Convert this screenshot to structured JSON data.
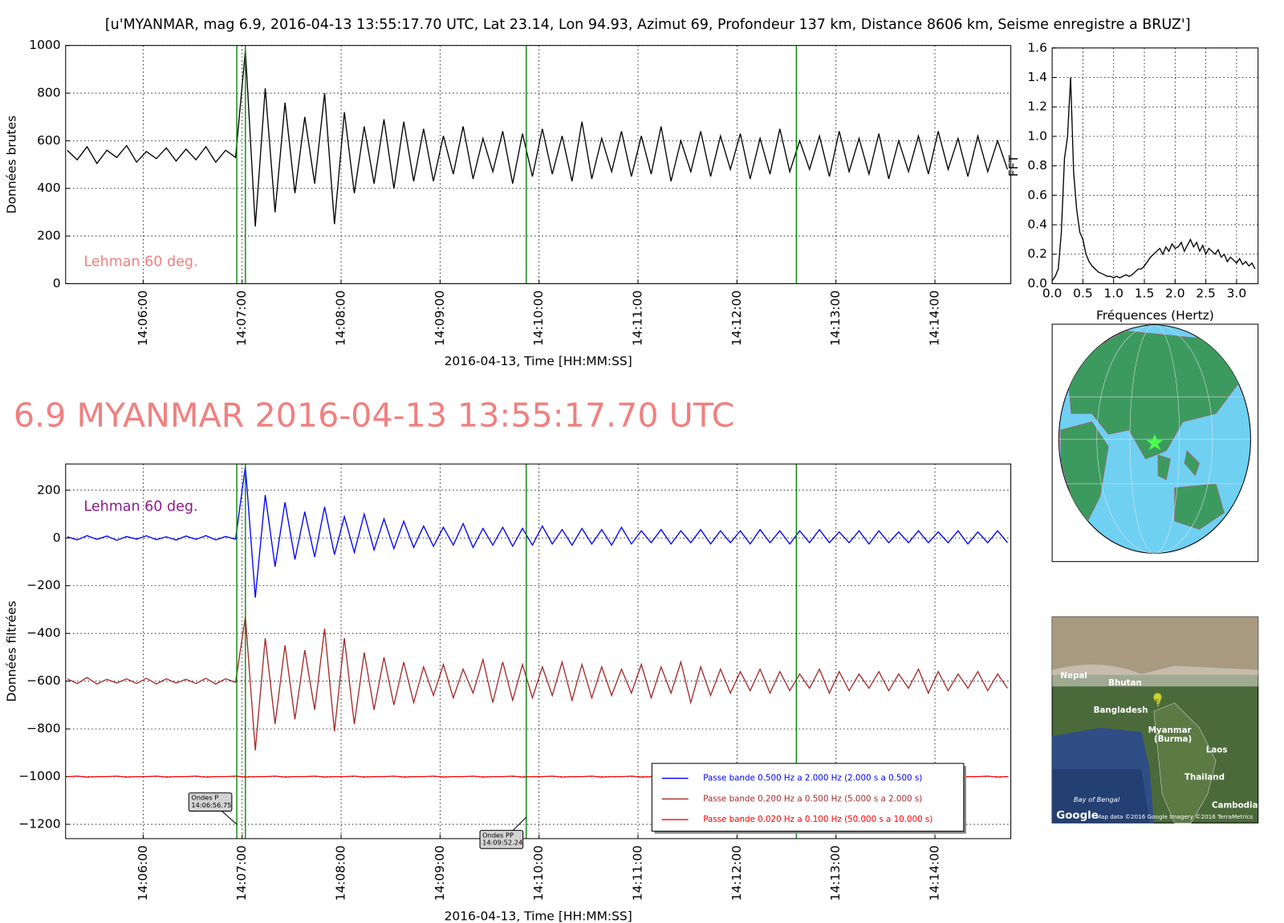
{
  "title": "[u'MYANMAR, mag 6.9, 2016-04-13 13:55:17.70 UTC, Lat 23.14, Lon 94.93, Azimut  69, Profondeur 137 km, Distance  8606 km, Seisme enregistre a BRUZ']",
  "headline": "6.9 MYANMAR 2016-04-13 13:55:17.70 UTC",
  "chart_data": [
    {
      "type": "line",
      "ylabel": "Données brutes",
      "xlabel": "2016-04-13, Time [HH:MM:SS]",
      "annotation": "Lehman 60 deg.",
      "annotation_color": "#f08080",
      "color": "#000000",
      "grid": true,
      "xlim": [
        "14:05:13",
        "14:14:46"
      ],
      "xticks": [
        "14:06:00",
        "14:07:00",
        "14:08:00",
        "14:09:00",
        "14:10:00",
        "14:11:00",
        "14:12:00",
        "14:13:00",
        "14:14:00"
      ],
      "ylim": [
        0,
        1000
      ],
      "yticks": [
        0,
        200,
        400,
        600,
        800,
        1000
      ],
      "vlines": [
        "14:06:56.75",
        "14:07:02",
        "14:09:52.24",
        "14:12:36"
      ],
      "vline_color": "#008000",
      "x": [
        "14:05:14",
        "14:05:20",
        "14:05:26",
        "14:05:32",
        "14:05:38",
        "14:05:44",
        "14:05:50",
        "14:05:56",
        "14:06:02",
        "14:06:08",
        "14:06:14",
        "14:06:20",
        "14:06:26",
        "14:06:32",
        "14:06:38",
        "14:06:44",
        "14:06:50",
        "14:06:56",
        "14:07:02",
        "14:07:08",
        "14:07:14",
        "14:07:20",
        "14:07:26",
        "14:07:32",
        "14:07:38",
        "14:07:44",
        "14:07:50",
        "14:07:56",
        "14:08:02",
        "14:08:08",
        "14:08:14",
        "14:08:20",
        "14:08:26",
        "14:08:32",
        "14:08:38",
        "14:08:44",
        "14:08:50",
        "14:08:56",
        "14:09:02",
        "14:09:08",
        "14:09:14",
        "14:09:20",
        "14:09:26",
        "14:09:32",
        "14:09:38",
        "14:09:44",
        "14:09:50",
        "14:09:56",
        "14:10:02",
        "14:10:08",
        "14:10:14",
        "14:10:20",
        "14:10:26",
        "14:10:32",
        "14:10:38",
        "14:10:44",
        "14:10:50",
        "14:10:56",
        "14:11:02",
        "14:11:08",
        "14:11:14",
        "14:11:20",
        "14:11:26",
        "14:11:32",
        "14:11:38",
        "14:11:44",
        "14:11:50",
        "14:11:56",
        "14:12:02",
        "14:12:08",
        "14:12:14",
        "14:12:20",
        "14:12:26",
        "14:12:32",
        "14:12:38",
        "14:12:44",
        "14:12:50",
        "14:12:56",
        "14:13:02",
        "14:13:08",
        "14:13:14",
        "14:13:20",
        "14:13:26",
        "14:13:32",
        "14:13:38",
        "14:13:44",
        "14:13:50",
        "14:13:56",
        "14:14:02",
        "14:14:08",
        "14:14:14",
        "14:14:20",
        "14:14:26",
        "14:14:32",
        "14:14:38",
        "14:14:44"
      ],
      "values": [
        560,
        520,
        575,
        505,
        560,
        530,
        580,
        510,
        555,
        525,
        570,
        515,
        565,
        520,
        575,
        510,
        560,
        530,
        980,
        240,
        820,
        300,
        760,
        380,
        700,
        420,
        800,
        250,
        720,
        380,
        660,
        420,
        690,
        400,
        680,
        430,
        650,
        430,
        620,
        460,
        660,
        440,
        610,
        470,
        640,
        420,
        630,
        450,
        650,
        460,
        620,
        430,
        680,
        440,
        610,
        470,
        640,
        450,
        620,
        460,
        660,
        430,
        600,
        470,
        640,
        450,
        620,
        480,
        630,
        440,
        610,
        460,
        650,
        470,
        600,
        480,
        620,
        450,
        640,
        470,
        610,
        460,
        630,
        440,
        600,
        470,
        620,
        460,
        640,
        480,
        610,
        450,
        620,
        470,
        600,
        480
      ]
    },
    {
      "type": "line",
      "ylabel": "Données filtrées",
      "xlabel": "2016-04-13, Time [HH:MM:SS]",
      "annotation": "Lehman 60 deg.",
      "annotation_color": "#8b1a8b",
      "grid": true,
      "xlim": [
        "14:05:13",
        "14:14:46"
      ],
      "xticks": [
        "14:06:00",
        "14:07:00",
        "14:08:00",
        "14:09:00",
        "14:10:00",
        "14:11:00",
        "14:12:00",
        "14:13:00",
        "14:14:00"
      ],
      "ylim": [
        -1260,
        310
      ],
      "yticks": [
        {
          "value": -1200,
          "label": "−1200"
        },
        {
          "value": -1000,
          "label": "−1000"
        },
        {
          "value": -800,
          "label": "−800"
        },
        {
          "value": -600,
          "label": "−600"
        },
        {
          "value": -400,
          "label": "−400"
        },
        {
          "value": -200,
          "label": "−200"
        },
        0,
        200
      ],
      "vlines": [
        "14:06:56.75",
        "14:07:02",
        "14:09:52.24",
        "14:12:36"
      ],
      "vline_color": "#008000",
      "arrows": [
        {
          "text": [
            "Ondes P",
            "14:06:56.75"
          ],
          "x": "14:06:56.75",
          "y": -1200
        },
        {
          "text": [
            "Ondes PP",
            "14:09:52.24"
          ],
          "x": "14:09:52.24",
          "y": -1170
        }
      ],
      "x": [
        "14:05:14",
        "14:05:20",
        "14:05:26",
        "14:05:32",
        "14:05:38",
        "14:05:44",
        "14:05:50",
        "14:05:56",
        "14:06:02",
        "14:06:08",
        "14:06:14",
        "14:06:20",
        "14:06:26",
        "14:06:32",
        "14:06:38",
        "14:06:44",
        "14:06:50",
        "14:06:56",
        "14:07:02",
        "14:07:08",
        "14:07:14",
        "14:07:20",
        "14:07:26",
        "14:07:32",
        "14:07:38",
        "14:07:44",
        "14:07:50",
        "14:07:56",
        "14:08:02",
        "14:08:08",
        "14:08:14",
        "14:08:20",
        "14:08:26",
        "14:08:32",
        "14:08:38",
        "14:08:44",
        "14:08:50",
        "14:08:56",
        "14:09:02",
        "14:09:08",
        "14:09:14",
        "14:09:20",
        "14:09:26",
        "14:09:32",
        "14:09:38",
        "14:09:44",
        "14:09:50",
        "14:09:56",
        "14:10:02",
        "14:10:08",
        "14:10:14",
        "14:10:20",
        "14:10:26",
        "14:10:32",
        "14:10:38",
        "14:10:44",
        "14:10:50",
        "14:10:56",
        "14:11:02",
        "14:11:08",
        "14:11:14",
        "14:11:20",
        "14:11:26",
        "14:11:32",
        "14:11:38",
        "14:11:44",
        "14:11:50",
        "14:11:56",
        "14:12:02",
        "14:12:08",
        "14:12:14",
        "14:12:20",
        "14:12:26",
        "14:12:32",
        "14:12:38",
        "14:12:44",
        "14:12:50",
        "14:12:56",
        "14:13:02",
        "14:13:08",
        "14:13:14",
        "14:13:20",
        "14:13:26",
        "14:13:32",
        "14:13:38",
        "14:13:44",
        "14:13:50",
        "14:13:56",
        "14:14:02",
        "14:14:08",
        "14:14:14",
        "14:14:20",
        "14:14:26",
        "14:14:32",
        "14:14:38",
        "14:14:44"
      ],
      "series": [
        {
          "name": "Passe bande 0.500 Hz a 2.000 Hz (2.000 s a 0.500 s)",
          "color": "#0000ff",
          "values": [
            5,
            -8,
            10,
            -6,
            8,
            -10,
            6,
            -5,
            9,
            -7,
            5,
            -9,
            8,
            -6,
            10,
            -8,
            6,
            -5,
            300,
            -250,
            180,
            -120,
            150,
            -90,
            110,
            -80,
            130,
            -70,
            90,
            -60,
            100,
            -50,
            80,
            -45,
            70,
            -40,
            50,
            -35,
            45,
            -30,
            60,
            -40,
            40,
            -30,
            45,
            -35,
            40,
            -30,
            50,
            -25,
            35,
            -30,
            40,
            -25,
            35,
            -30,
            45,
            -25,
            30,
            -20,
            35,
            -25,
            30,
            -20,
            35,
            -25,
            30,
            -20,
            30,
            -25,
            35,
            -20,
            30,
            -25,
            30,
            -20,
            35,
            -20,
            25,
            -20,
            30,
            -25,
            30,
            -20,
            25,
            -20,
            30,
            -20,
            25,
            -20,
            30,
            -25,
            25,
            -20,
            30,
            -20
          ]
        },
        {
          "name": "Passe bande 0.200 Hz a 0.500 Hz (5.000 s a 2.000 s)",
          "color": "#a52a2a",
          "values": [
            -590,
            -610,
            -585,
            -612,
            -592,
            -608,
            -590,
            -610,
            -588,
            -612,
            -590,
            -608,
            -592,
            -610,
            -588,
            -612,
            -590,
            -605,
            -330,
            -890,
            -420,
            -780,
            -450,
            -760,
            -470,
            -720,
            -380,
            -810,
            -420,
            -780,
            -480,
            -720,
            -500,
            -700,
            -520,
            -690,
            -540,
            -660,
            -530,
            -670,
            -550,
            -650,
            -510,
            -690,
            -520,
            -680,
            -530,
            -670,
            -540,
            -660,
            -520,
            -680,
            -530,
            -670,
            -540,
            -660,
            -550,
            -650,
            -530,
            -670,
            -540,
            -650,
            -520,
            -690,
            -540,
            -660,
            -550,
            -650,
            -560,
            -640,
            -550,
            -650,
            -560,
            -640,
            -570,
            -630,
            -550,
            -650,
            -560,
            -640,
            -570,
            -630,
            -560,
            -640,
            -570,
            -630,
            -550,
            -650,
            -560,
            -640,
            -570,
            -630,
            -560,
            -640,
            -570,
            -630
          ]
        },
        {
          "name": "Passe bande 0.020 Hz a 0.100 Hz (50.000 s a 10.000 s)",
          "color": "#ff0000",
          "values": [
            -1000,
            -998,
            -1002,
            -1000,
            -1000,
            -998,
            -1002,
            -1000,
            -1000,
            -998,
            -1002,
            -1000,
            -1000,
            -998,
            -1002,
            -1000,
            -1000,
            -998,
            -1002,
            -1000,
            -1000,
            -998,
            -1002,
            -1000,
            -1000,
            -998,
            -1002,
            -1000,
            -1000,
            -998,
            -1002,
            -1000,
            -1000,
            -998,
            -1002,
            -1000,
            -1000,
            -998,
            -1002,
            -1000,
            -1000,
            -998,
            -1002,
            -1000,
            -1000,
            -998,
            -1002,
            -1000,
            -1000,
            -998,
            -1002,
            -1000,
            -1000,
            -998,
            -1002,
            -1000,
            -1000,
            -998,
            -1002,
            -1000,
            -1000,
            -998,
            -1002,
            -1000,
            -1000,
            -998,
            -1002,
            -1000,
            -1000,
            -998,
            -1002,
            -1000,
            -1000,
            -998,
            -1002,
            -1000,
            -1000,
            -998,
            -1002,
            -1000,
            -1000,
            -998,
            -1002,
            -1000,
            -1000,
            -998,
            -1002,
            -1000,
            -1000,
            -998,
            -1002,
            -1000,
            -1000,
            -998,
            -1002,
            -1000
          ]
        }
      ]
    },
    {
      "type": "line",
      "ylabel": "FFT",
      "xlabel": "Fréquences (Hertz)",
      "color": "#000000",
      "grid": true,
      "xlim": [
        0,
        3.35
      ],
      "xticks": [
        {
          "value": 0,
          "label": "0.0"
        },
        0.5,
        {
          "value": 1,
          "label": "1.0"
        },
        1.5,
        {
          "value": 2,
          "label": "2.0"
        },
        2.5,
        {
          "value": 3,
          "label": "3.0"
        }
      ],
      "ylim": [
        0,
        1.6
      ],
      "yticks": [
        {
          "value": 0,
          "label": "0.0"
        },
        0.2,
        0.4,
        0.6,
        0.8,
        {
          "value": 1,
          "label": "1.0"
        },
        1.2,
        1.4,
        1.6
      ],
      "x": [
        0,
        0.05,
        0.1,
        0.15,
        0.2,
        0.25,
        0.3,
        0.35,
        0.4,
        0.45,
        0.5,
        0.55,
        0.6,
        0.65,
        0.7,
        0.75,
        0.8,
        0.85,
        0.9,
        0.95,
        1,
        1.05,
        1.1,
        1.15,
        1.2,
        1.25,
        1.3,
        1.35,
        1.4,
        1.45,
        1.5,
        1.55,
        1.6,
        1.65,
        1.7,
        1.75,
        1.8,
        1.85,
        1.9,
        1.95,
        2,
        2.05,
        2.1,
        2.15,
        2.2,
        2.25,
        2.3,
        2.35,
        2.4,
        2.45,
        2.5,
        2.55,
        2.6,
        2.65,
        2.7,
        2.75,
        2.8,
        2.85,
        2.9,
        2.95,
        3,
        3.05,
        3.1,
        3.15,
        3.2,
        3.25,
        3.3
      ],
      "values": [
        0.02,
        0.05,
        0.1,
        0.35,
        0.85,
        1.0,
        1.4,
        0.75,
        0.5,
        0.35,
        0.3,
        0.2,
        0.15,
        0.12,
        0.1,
        0.08,
        0.07,
        0.06,
        0.05,
        0.05,
        0.04,
        0.05,
        0.04,
        0.05,
        0.06,
        0.05,
        0.06,
        0.08,
        0.1,
        0.1,
        0.12,
        0.15,
        0.18,
        0.2,
        0.22,
        0.24,
        0.2,
        0.25,
        0.22,
        0.27,
        0.24,
        0.25,
        0.28,
        0.22,
        0.26,
        0.3,
        0.25,
        0.28,
        0.22,
        0.26,
        0.2,
        0.24,
        0.22,
        0.2,
        0.23,
        0.18,
        0.2,
        0.15,
        0.18,
        0.16,
        0.14,
        0.17,
        0.13,
        0.15,
        0.12,
        0.14,
        0.1
      ]
    }
  ],
  "map": {
    "labels": [
      "Nepal",
      "Bhutan",
      "Bangladesh",
      "Myanmar",
      "(Burma)",
      "Laos",
      "Thailand",
      "Bay of Bengal",
      "Cambodia"
    ],
    "marker": "E",
    "logo": "Google",
    "credit": "Map data ©2016 Google  Imagery ©2016 TerraMetrics"
  }
}
